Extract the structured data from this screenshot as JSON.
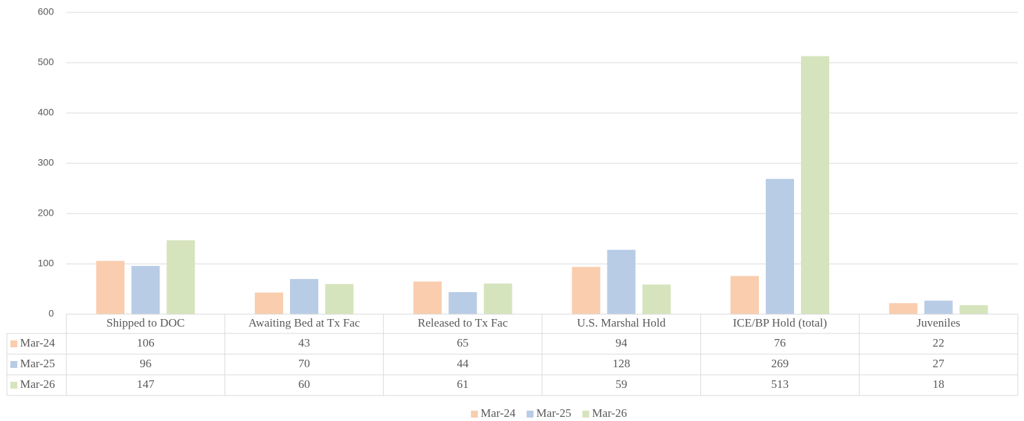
{
  "chart_data": {
    "type": "bar",
    "categories": [
      "Shipped to DOC",
      "Awaiting Bed at Tx Fac",
      "Released to Tx Fac",
      "U.S. Marshal Hold",
      "ICE/BP Hold (total)",
      "Juveniles"
    ],
    "series": [
      {
        "name": "Mar-24",
        "color": "#f9cdae",
        "values": [
          106,
          43,
          65,
          94,
          76,
          22
        ]
      },
      {
        "name": "Mar-25",
        "color": "#b9cce6",
        "values": [
          96,
          70,
          44,
          128,
          269,
          27
        ]
      },
      {
        "name": "Mar-26",
        "color": "#d6e4bd",
        "values": [
          147,
          60,
          61,
          59,
          513,
          18
        ]
      }
    ],
    "ylim": [
      0,
      600
    ],
    "yticks": [
      0,
      100,
      200,
      300,
      400,
      500,
      600
    ],
    "grid": true,
    "legend": "bottom",
    "data_table": true
  }
}
